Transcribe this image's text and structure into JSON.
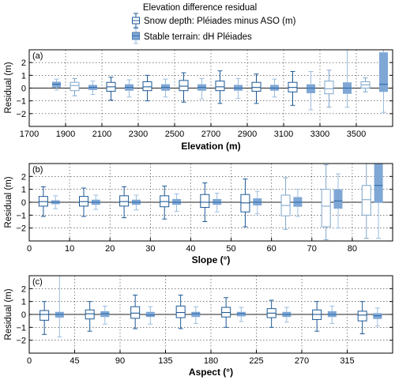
{
  "legend": {
    "title": "Elevation difference residual",
    "entries": [
      {
        "label": "Snow depth: Pléiades minus ASO (m)",
        "style": "outline"
      },
      {
        "label": "Stable terrain: dH Pléiades",
        "style": "filled"
      }
    ]
  },
  "colors": {
    "snow_dark": "#1f5a96",
    "snow_light": "#7fa7cc",
    "stable_fill": "#7fa7d6",
    "stable_dark": "#2f6aa6",
    "stable_light": "#9bbde0"
  },
  "chart_data": [
    {
      "type": "box",
      "panel": "(a)",
      "xlabel": "Elevation (m)",
      "ylabel": "Residual (m)",
      "xlim": [
        1700,
        3700
      ],
      "ylim": [
        -3,
        3
      ],
      "xticks": [
        1700,
        1900,
        2100,
        2300,
        2500,
        2700,
        2900,
        3100,
        3300,
        3500
      ],
      "yticks": [
        -2,
        -1,
        0,
        1,
        2
      ],
      "grid": true,
      "snow_depth": [
        {
          "x": 1950,
          "q1": -0.2,
          "median": 0.2,
          "q3": 0.45,
          "wlo": -0.6,
          "whi": 0.75,
          "faint": true
        },
        {
          "x": 2150,
          "q1": -0.25,
          "median": 0.1,
          "q3": 0.45,
          "wlo": -0.95,
          "whi": 0.85
        },
        {
          "x": 2350,
          "q1": -0.2,
          "median": 0.1,
          "q3": 0.5,
          "wlo": -1.0,
          "whi": 1.0
        },
        {
          "x": 2550,
          "q1": -0.2,
          "median": 0.15,
          "q3": 0.6,
          "wlo": -1.1,
          "whi": 1.2
        },
        {
          "x": 2750,
          "q1": -0.2,
          "median": 0.1,
          "q3": 0.55,
          "wlo": -1.2,
          "whi": 1.35
        },
        {
          "x": 2950,
          "q1": -0.25,
          "median": 0.05,
          "q3": 0.45,
          "wlo": -1.2,
          "whi": 1.1
        },
        {
          "x": 3150,
          "q1": -0.3,
          "median": 0.05,
          "q3": 0.45,
          "wlo": -1.35,
          "whi": 1.3
        },
        {
          "x": 3350,
          "q1": -0.45,
          "median": -0.05,
          "q3": 0.55,
          "wlo": -1.5,
          "whi": 1.4,
          "faint": true
        },
        {
          "x": 3550,
          "q1": 0.0,
          "median": 0.25,
          "q3": 0.5,
          "wlo": -0.3,
          "whi": 0.8,
          "faint": true
        }
      ],
      "stable_terrain": [
        {
          "x": 1850,
          "q1": 0.05,
          "median": 0.3,
          "q3": 0.5,
          "wlo": -0.15,
          "whi": 0.7
        },
        {
          "x": 2050,
          "q1": -0.15,
          "median": 0.05,
          "q3": 0.25,
          "wlo": -0.5,
          "whi": 0.55
        },
        {
          "x": 2250,
          "q1": -0.2,
          "median": 0.05,
          "q3": 0.3,
          "wlo": -0.7,
          "whi": 0.65
        },
        {
          "x": 2450,
          "q1": -0.2,
          "median": 0.05,
          "q3": 0.3,
          "wlo": -0.7,
          "whi": 0.7
        },
        {
          "x": 2650,
          "q1": -0.2,
          "median": 0.05,
          "q3": 0.3,
          "wlo": -0.85,
          "whi": 0.75
        },
        {
          "x": 2850,
          "q1": -0.2,
          "median": 0.0,
          "q3": 0.25,
          "wlo": -0.8,
          "whi": 0.75
        },
        {
          "x": 3050,
          "q1": -0.2,
          "median": 0.0,
          "q3": 0.25,
          "wlo": -0.7,
          "whi": 0.7
        },
        {
          "x": 3250,
          "q1": -0.4,
          "median": 0.0,
          "q3": 0.3,
          "wlo": -1.7,
          "whi": 1.3
        },
        {
          "x": 3450,
          "q1": -0.45,
          "median": 0.0,
          "q3": 0.45,
          "wlo": -1.5,
          "whi": 3.0
        },
        {
          "x": 3650,
          "q1": -0.3,
          "median": 0.3,
          "q3": 2.8,
          "wlo": -1.9,
          "whi": 3.0
        }
      ]
    },
    {
      "type": "box",
      "panel": "(b)",
      "xlabel": "Slope (°)",
      "ylabel": "Residual (m)",
      "xlim": [
        0,
        90
      ],
      "ylim": [
        -3,
        3
      ],
      "xticks": [
        0,
        10,
        20,
        30,
        40,
        50,
        60,
        70,
        80
      ],
      "yticks": [
        -2,
        -1,
        0,
        1,
        2
      ],
      "grid": true,
      "snow_depth": [
        {
          "x": 3.5,
          "q1": -0.3,
          "median": 0.05,
          "q3": 0.45,
          "wlo": -1.1,
          "whi": 1.2
        },
        {
          "x": 13.5,
          "q1": -0.3,
          "median": 0.05,
          "q3": 0.45,
          "wlo": -1.1,
          "whi": 1.1
        },
        {
          "x": 23.5,
          "q1": -0.3,
          "median": 0.05,
          "q3": 0.5,
          "wlo": -1.2,
          "whi": 1.2
        },
        {
          "x": 33.5,
          "q1": -0.35,
          "median": 0.05,
          "q3": 0.5,
          "wlo": -1.3,
          "whi": 1.25
        },
        {
          "x": 43.5,
          "q1": -0.4,
          "median": 0.0,
          "q3": 0.6,
          "wlo": -1.5,
          "whi": 1.5
        },
        {
          "x": 53.5,
          "q1": -0.75,
          "median": -0.05,
          "q3": 0.6,
          "wlo": -1.9,
          "whi": 1.8
        },
        {
          "x": 63.5,
          "q1": -1.05,
          "median": -0.25,
          "q3": 0.55,
          "wlo": -2.1,
          "whi": 1.9,
          "faint": true
        },
        {
          "x": 73.5,
          "q1": -1.9,
          "median": -0.3,
          "q3": 1.0,
          "wlo": -2.9,
          "whi": 2.9,
          "faint": true
        },
        {
          "x": 83.5,
          "q1": -1.0,
          "median": 0.2,
          "q3": 1.3,
          "wlo": -2.8,
          "whi": 3.0,
          "faint": true
        }
      ],
      "stable_terrain": [
        {
          "x": 6.5,
          "q1": -0.15,
          "median": 0.0,
          "q3": 0.15,
          "wlo": -0.5,
          "whi": 0.5
        },
        {
          "x": 16.5,
          "q1": -0.2,
          "median": 0.0,
          "q3": 0.2,
          "wlo": -0.55,
          "whi": 0.55
        },
        {
          "x": 26.5,
          "q1": -0.2,
          "median": 0.0,
          "q3": 0.2,
          "wlo": -0.6,
          "whi": 0.55
        },
        {
          "x": 36.5,
          "q1": -0.2,
          "median": 0.0,
          "q3": 0.25,
          "wlo": -0.7,
          "whi": 0.65
        },
        {
          "x": 46.5,
          "q1": -0.2,
          "median": 0.0,
          "q3": 0.25,
          "wlo": -0.75,
          "whi": 0.7
        },
        {
          "x": 56.5,
          "q1": -0.25,
          "median": 0.0,
          "q3": 0.3,
          "wlo": -0.9,
          "whi": 0.85
        },
        {
          "x": 66.5,
          "q1": -0.35,
          "median": 0.0,
          "q3": 0.4,
          "wlo": -1.1,
          "whi": 1.0
        },
        {
          "x": 76.5,
          "q1": -0.5,
          "median": 0.1,
          "q3": 1.0,
          "wlo": -2.0,
          "whi": 2.2
        },
        {
          "x": 86.5,
          "q1": -0.05,
          "median": 1.3,
          "q3": 3.0,
          "wlo": -2.8,
          "whi": 3.0
        }
      ]
    },
    {
      "type": "box",
      "panel": "(c)",
      "xlabel": "Aspect (°)",
      "ylabel": "Residual (m)",
      "xlim": [
        0,
        360
      ],
      "ylim": [
        -3,
        3
      ],
      "xticks": [
        0,
        45,
        90,
        135,
        180,
        225,
        270,
        315
      ],
      "yticks": [
        -2,
        -1,
        0,
        1,
        2
      ],
      "grid": true,
      "snow_depth": [
        {
          "x": 15,
          "q1": -0.45,
          "median": 0.0,
          "q3": 0.3,
          "wlo": -1.55,
          "whi": 1.0
        },
        {
          "x": 60,
          "q1": -0.35,
          "median": 0.05,
          "q3": 0.35,
          "wlo": -1.3,
          "whi": 1.0
        },
        {
          "x": 105,
          "q1": -0.3,
          "median": 0.1,
          "q3": 0.6,
          "wlo": -1.1,
          "whi": 1.5
        },
        {
          "x": 150,
          "q1": -0.25,
          "median": 0.15,
          "q3": 0.65,
          "wlo": -1.1,
          "whi": 1.5
        },
        {
          "x": 195,
          "q1": -0.2,
          "median": 0.15,
          "q3": 0.55,
          "wlo": -1.0,
          "whi": 1.3
        },
        {
          "x": 240,
          "q1": -0.25,
          "median": 0.1,
          "q3": 0.45,
          "wlo": -1.0,
          "whi": 1.1
        },
        {
          "x": 285,
          "q1": -0.4,
          "median": 0.0,
          "q3": 0.35,
          "wlo": -1.3,
          "whi": 1.0
        },
        {
          "x": 330,
          "q1": -0.5,
          "median": -0.05,
          "q3": 0.25,
          "wlo": -1.5,
          "whi": 1.0
        }
      ],
      "stable_terrain": [
        {
          "x": 30,
          "q1": -0.25,
          "median": 0.0,
          "q3": 0.2,
          "wlo": -1.75,
          "whi": 3.0,
          "light_whisker": true
        },
        {
          "x": 75,
          "q1": -0.2,
          "median": 0.05,
          "q3": 0.25,
          "wlo": -0.75,
          "whi": 0.65
        },
        {
          "x": 120,
          "q1": -0.2,
          "median": -0.05,
          "q3": 0.2,
          "wlo": -0.75,
          "whi": 0.6
        },
        {
          "x": 165,
          "q1": -0.2,
          "median": 0.05,
          "q3": 0.2,
          "wlo": -0.7,
          "whi": 0.6
        },
        {
          "x": 210,
          "q1": -0.15,
          "median": 0.05,
          "q3": 0.2,
          "wlo": -0.55,
          "whi": 0.55
        },
        {
          "x": 255,
          "q1": -0.2,
          "median": 0.0,
          "q3": 0.2,
          "wlo": -0.6,
          "whi": 0.55
        },
        {
          "x": 300,
          "q1": -0.2,
          "median": 0.0,
          "q3": 0.25,
          "wlo": -0.7,
          "whi": 0.65
        },
        {
          "x": 345,
          "q1": -0.35,
          "median": -0.1,
          "q3": 0.1,
          "wlo": -0.9,
          "whi": 0.5
        }
      ]
    }
  ]
}
